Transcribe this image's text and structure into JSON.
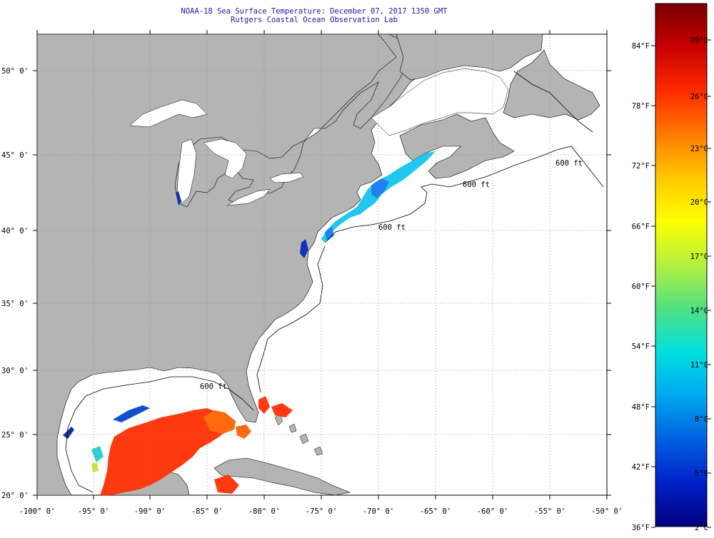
{
  "title": {
    "line1": "NOAA-18 Sea Surface Temperature:  December 07, 2017 1350 GMT",
    "line2": "Rutgers Coastal Ocean Observation Lab"
  },
  "map": {
    "lat_labels": [
      "50° 0'",
      "45° 0'",
      "40° 0'",
      "35° 0'",
      "30° 0'",
      "25° 0'",
      "20° 0'"
    ],
    "lon_labels": [
      "-100° 0'",
      "-95° 0'",
      "-90° 0'",
      "-85° 0'",
      "-80° 0'",
      "-75° 0'",
      "-70° 0'",
      "-65° 0'",
      "-60° 0'",
      "-55° 0'",
      "-50° 0'"
    ],
    "isobath_label": "600 ft",
    "colors": {
      "land": "#b4b4b4",
      "ocean_nodata": "#ffffff",
      "grid": "#808080"
    }
  },
  "colorbar": {
    "fahrenheit_labels": [
      "84°F",
      "78°F",
      "72°F",
      "66°F",
      "60°F",
      "54°F",
      "48°F",
      "42°F",
      "36°F"
    ],
    "celsius_labels": [
      "29°C",
      "26°C",
      "23°C",
      "20°C",
      "17°C",
      "14°C",
      "11°C",
      "8°C",
      "5°C",
      "2°C"
    ],
    "gradient_stops": [
      "#7a0000",
      "#c80000",
      "#ff2a00",
      "#ff7a00",
      "#ffc800",
      "#ffff00",
      "#b4f040",
      "#50e080",
      "#00e0e0",
      "#00a8f0",
      "#0060e0",
      "#0020c8",
      "#000080"
    ]
  }
}
